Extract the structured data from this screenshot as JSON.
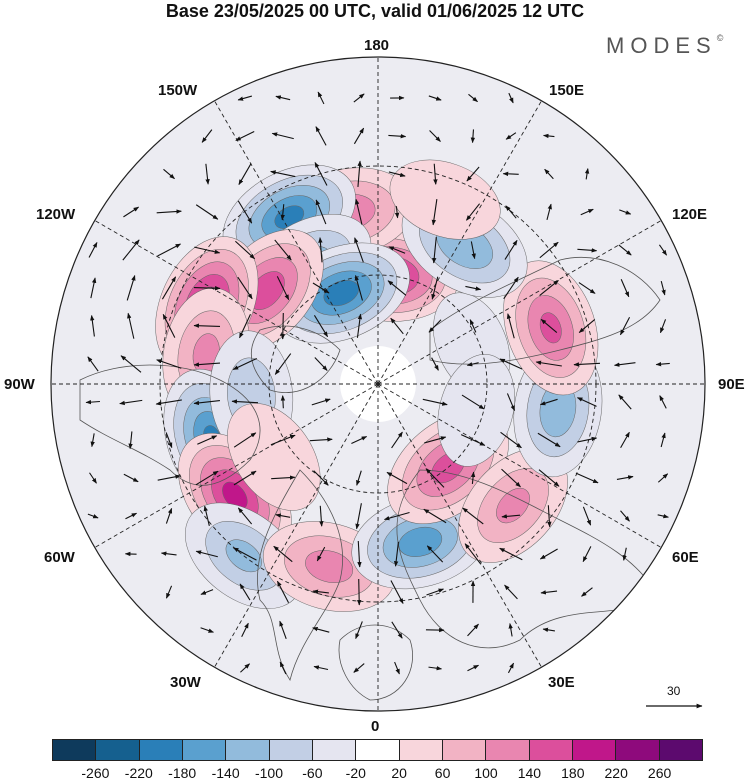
{
  "title": "Base 23/05/2025 00 UTC, valid 01/06/2025 12 UTC",
  "brand": {
    "name": "MODES",
    "mark": "©"
  },
  "longitude_labels": {
    "top": "180",
    "bottom": "0",
    "left": "90W",
    "right": "90E",
    "upper_left_1": "150W",
    "upper_left_2": "120W",
    "upper_right_1": "150E",
    "upper_right_2": "120E",
    "lower_left_1": "60W",
    "lower_left_2": "30W",
    "lower_right_1": "60E",
    "lower_right_2": "30E"
  },
  "vector_scale": {
    "label": "30"
  },
  "colorbar": {
    "colors": [
      "#0e3a5c",
      "#15608f",
      "#2a7fb8",
      "#5aa0cf",
      "#92bbdc",
      "#c2cfe5",
      "#e5e5f0",
      "#ffffff",
      "#f8d6dc",
      "#f2b3c4",
      "#e986b0",
      "#dc4f9c",
      "#c0178a",
      "#8e0a7c",
      "#5c0a6e"
    ],
    "ticks": [
      "-260",
      "-220",
      "-180",
      "-140",
      "-100",
      "-60",
      "-20",
      "20",
      "60",
      "100",
      "140",
      "180",
      "220",
      "260"
    ]
  },
  "anomaly_centers": [
    {
      "lon": 175,
      "lat": 60,
      "value": 210
    },
    {
      "lon": -170,
      "lat": 42,
      "value": 130
    },
    {
      "lon": -152,
      "lat": 38,
      "value": -200
    },
    {
      "lon": -150,
      "lat": 52,
      "value": -120
    },
    {
      "lon": -158,
      "lat": 63,
      "value": -210
    },
    {
      "lon": -130,
      "lat": 50,
      "value": 170
    },
    {
      "lon": -115,
      "lat": 38,
      "value": 210
    },
    {
      "lon": -100,
      "lat": 42,
      "value": 110
    },
    {
      "lon": -72,
      "lat": 42,
      "value": -190
    },
    {
      "lon": -85,
      "lat": 55,
      "value": -90
    },
    {
      "lon": -52,
      "lat": 40,
      "value": 200
    },
    {
      "lon": -55,
      "lat": 55,
      "value": 60
    },
    {
      "lon": -38,
      "lat": 30,
      "value": -110
    },
    {
      "lon": -15,
      "lat": 38,
      "value": 120
    },
    {
      "lon": 15,
      "lat": 45,
      "value": -170
    },
    {
      "lon": 40,
      "lat": 60,
      "value": 160
    },
    {
      "lon": 48,
      "lat": 40,
      "value": 110
    },
    {
      "lon": 82,
      "lat": 40,
      "value": -130
    },
    {
      "lon": 108,
      "lat": 40,
      "value": 150
    },
    {
      "lon": 113,
      "lat": 62,
      "value": -40
    },
    {
      "lon": 148,
      "lat": 45,
      "value": -140
    },
    {
      "lon": 160,
      "lat": 36,
      "value": 50
    },
    {
      "lon": 75,
      "lat": 62,
      "value": -50
    }
  ]
}
